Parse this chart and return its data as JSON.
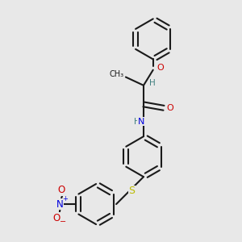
{
  "bg_color": "#e8e8e8",
  "bond_color": "#1a1a1a",
  "atom_colors": {
    "O": "#cc0000",
    "N": "#0000dd",
    "S": "#bbbb00",
    "H": "#408080",
    "C": "#1a1a1a"
  },
  "figsize": [
    3.0,
    3.0
  ],
  "dpi": 100
}
